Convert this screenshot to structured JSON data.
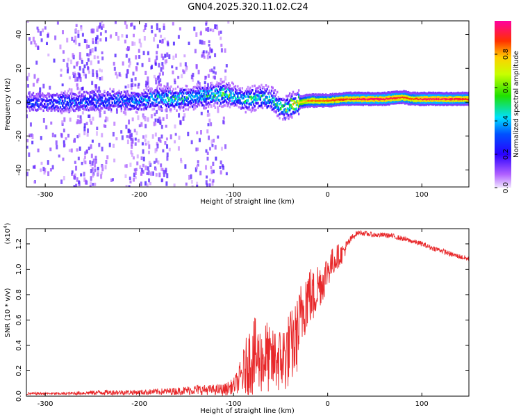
{
  "title": "GN04.2025.320.11.02.C24",
  "chart_data": [
    {
      "type": "heatmap",
      "xlabel": "Height of straight line (km)",
      "ylabel": "Frequency (Hz)",
      "xlim": [
        -320,
        150
      ],
      "ylim": [
        -50,
        48
      ],
      "xticks": [
        -300,
        -200,
        -100,
        0,
        100
      ],
      "yticks": [
        -40,
        -20,
        0,
        20,
        40
      ],
      "colorbar": {
        "label": "Normalized spectral amplitude",
        "range": [
          0,
          1
        ],
        "ticks": [
          "0.0",
          "0.2",
          "0.4",
          "0.6",
          "0.8"
        ]
      },
      "ridge": {
        "x": [
          -320,
          -280,
          -240,
          -200,
          -180,
          -160,
          -140,
          -120,
          -110,
          -100,
          -90,
          -80,
          -70,
          -60,
          -50,
          -45,
          -40,
          -35,
          -30,
          -20,
          -10,
          0,
          20,
          40,
          60,
          80,
          90,
          100,
          120,
          150
        ],
        "y": [
          0,
          0,
          1,
          1,
          3,
          2,
          3,
          4,
          5,
          4,
          1,
          2,
          3,
          2,
          -3,
          -4,
          -2,
          -1,
          0,
          1,
          1,
          1,
          2,
          2,
          2,
          3,
          2,
          2,
          2,
          2
        ],
        "amplitude": [
          0.25,
          0.3,
          0.3,
          0.35,
          0.4,
          0.45,
          0.4,
          0.45,
          0.5,
          0.45,
          0.4,
          0.5,
          0.45,
          0.45,
          0.5,
          0.55,
          0.6,
          0.65,
          0.7,
          0.85,
          0.85,
          0.85,
          0.9,
          0.95,
          0.95,
          0.9,
          0.85,
          0.95,
          0.95,
          0.9
        ]
      }
    },
    {
      "type": "line",
      "xlabel": "Height of straight line (km)",
      "ylabel": "SNR (10 * v/v)",
      "y_scale_label": "(x10",
      "y_scale_exp": "4",
      "xlim": [
        -320,
        150
      ],
      "ylim": [
        0,
        1.32
      ],
      "xticks": [
        -300,
        -200,
        -100,
        0,
        100
      ],
      "yticks": [
        "0.0",
        "0.2",
        "0.4",
        "0.6",
        "0.8",
        "1.0",
        "1.2"
      ],
      "series": [
        {
          "name": "SNR",
          "color": "#e8282a",
          "x": [
            -320,
            -280,
            -240,
            -200,
            -160,
            -140,
            -120,
            -110,
            -100,
            -95,
            -90,
            -85,
            -80,
            -75,
            -70,
            -65,
            -60,
            -55,
            -50,
            -45,
            -40,
            -35,
            -30,
            -25,
            -20,
            -15,
            -10,
            -5,
            0,
            5,
            10,
            15,
            20,
            25,
            30,
            35,
            40,
            50,
            60,
            70,
            80,
            90,
            100,
            110,
            120,
            130,
            140,
            150
          ],
          "y": [
            0.02,
            0.02,
            0.03,
            0.03,
            0.04,
            0.05,
            0.05,
            0.05,
            0.08,
            0.12,
            0.18,
            0.26,
            0.32,
            0.3,
            0.28,
            0.32,
            0.26,
            0.3,
            0.28,
            0.32,
            0.38,
            0.42,
            0.55,
            0.75,
            0.8,
            0.78,
            0.88,
            0.9,
            1.0,
            1.05,
            1.1,
            1.12,
            1.18,
            1.24,
            1.28,
            1.29,
            1.28,
            1.27,
            1.27,
            1.26,
            1.24,
            1.22,
            1.2,
            1.17,
            1.15,
            1.12,
            1.1,
            1.08
          ],
          "band": [
            0.01,
            0.01,
            0.02,
            0.02,
            0.03,
            0.04,
            0.04,
            0.05,
            0.06,
            0.1,
            0.18,
            0.25,
            0.32,
            0.3,
            0.26,
            0.3,
            0.24,
            0.28,
            0.26,
            0.3,
            0.3,
            0.3,
            0.3,
            0.3,
            0.25,
            0.22,
            0.2,
            0.16,
            0.14,
            0.12,
            0.1,
            0.08,
            0.05,
            0.03,
            0.02,
            0.02,
            0.02,
            0.02,
            0.02,
            0.02,
            0.02,
            0.02,
            0.02,
            0.02,
            0.02,
            0.02,
            0.02,
            0.02
          ]
        }
      ]
    }
  ]
}
